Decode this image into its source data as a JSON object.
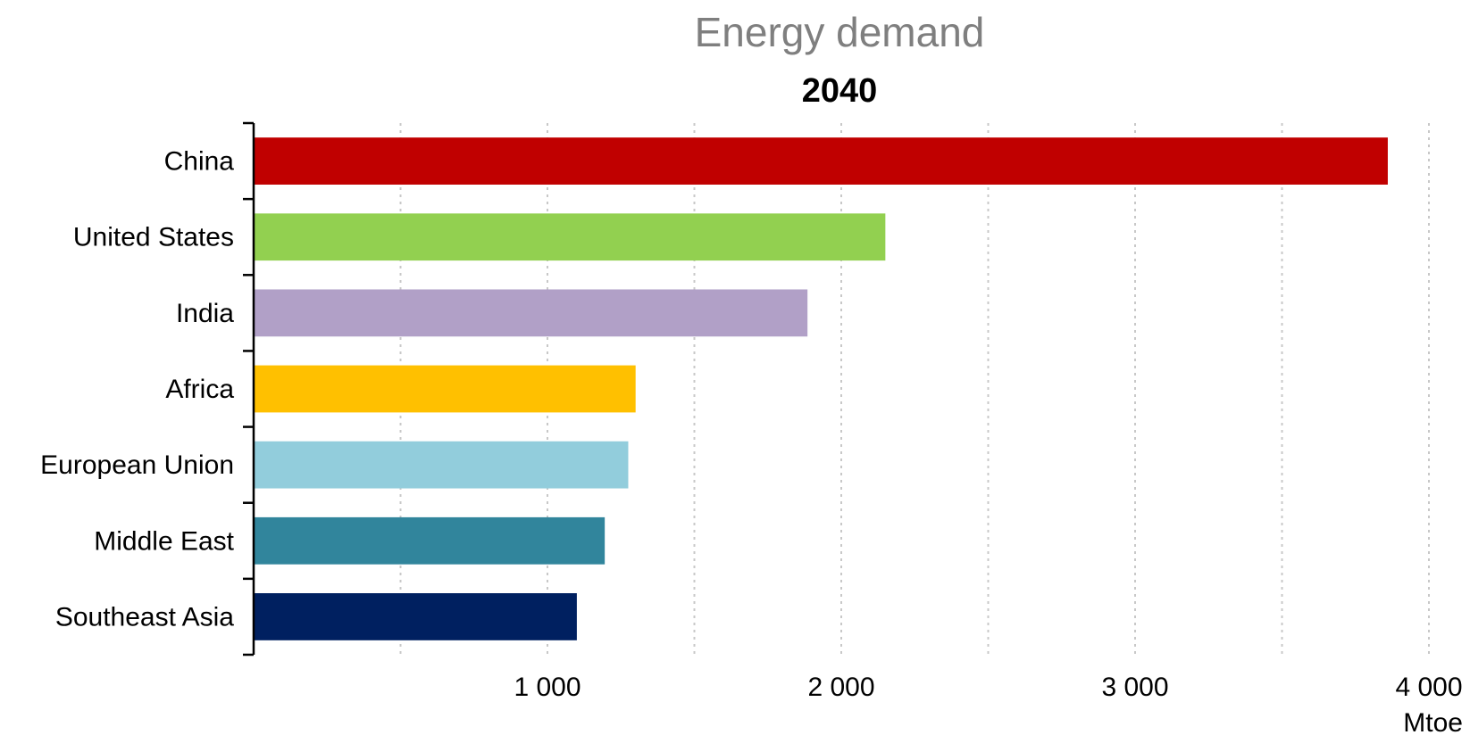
{
  "chart_data": {
    "type": "bar",
    "orientation": "horizontal",
    "title": "Energy demand",
    "subtitle": "2040",
    "categories": [
      "China",
      "United States",
      "India",
      "Africa",
      "European Union",
      "Middle East",
      "Southeast Asia"
    ],
    "values": [
      3860,
      2150,
      1885,
      1300,
      1275,
      1195,
      1100
    ],
    "colors": [
      "#c00000",
      "#92d050",
      "#b1a0c7",
      "#ffc000",
      "#92cddc",
      "#31859c",
      "#002060"
    ],
    "xlim": [
      0,
      4000
    ],
    "xticks": [
      1000,
      2000,
      3000,
      4000
    ],
    "xtick_labels": [
      "1 000",
      "2 000",
      "3 000",
      "4 000"
    ],
    "x_unit": "Mtoe",
    "grid": "vertical dotted",
    "legend": "none"
  }
}
